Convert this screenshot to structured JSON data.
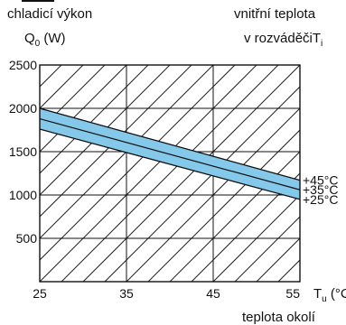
{
  "chart_data": {
    "type": "area",
    "y_title_line1": "chladicí výkon",
    "y_title_symbol": "Q",
    "y_title_subscript": "0",
    "y_title_unit": "(W)",
    "right_title_line1": "vnitřní teplota",
    "right_title_line2": "v rozváděči",
    "right_title_symbol": "T",
    "right_title_subscript": "i",
    "x_label_suffix_symbol": "T",
    "x_label_suffix_subscript": "u",
    "x_label_suffix_unit": "(°C)",
    "x_bottom_label": "teplota okolí",
    "x_ticks": [
      "25",
      "35",
      "45",
      "55"
    ],
    "y_ticks": [
      "2500",
      "2000",
      "1500",
      "1000",
      "500"
    ],
    "xlim": [
      25,
      55
    ],
    "ylim": [
      0,
      2500
    ],
    "grid": true,
    "band_color": "#84C8EA",
    "line_color": "#111111",
    "series": [
      {
        "name": "+45°C",
        "x": [
          25,
          55
        ],
        "y": [
          2000,
          1170
        ]
      },
      {
        "name": "+35°C",
        "x": [
          25,
          55
        ],
        "y": [
          1880,
          1060
        ]
      },
      {
        "name": "+25°C",
        "x": [
          25,
          55
        ],
        "y": [
          1760,
          950
        ]
      }
    ]
  }
}
